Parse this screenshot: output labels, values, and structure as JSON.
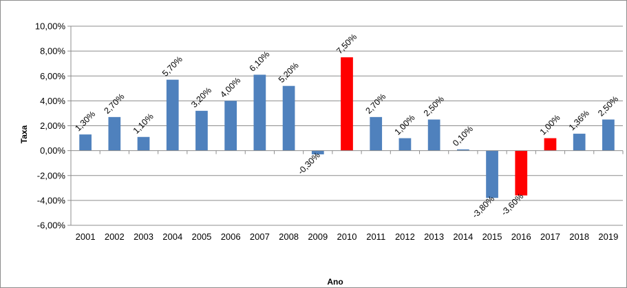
{
  "chart_data": {
    "type": "bar",
    "xlabel": "Ano",
    "ylabel": "Taxa",
    "ylim": [
      -6,
      10
    ],
    "ytick_values": [
      10,
      8,
      6,
      4,
      2,
      0,
      -2,
      -4,
      -6
    ],
    "ytick_labels": [
      "10,00%",
      "8,00%",
      "6,00%",
      "4,00%",
      "2,00%",
      "0,00%",
      "-2,00%",
      "-4,00%",
      "-6,00%"
    ],
    "grid": true,
    "legend": "none",
    "categories": [
      "2001",
      "2002",
      "2003",
      "2004",
      "2005",
      "2006",
      "2007",
      "2008",
      "2009",
      "2010",
      "2011",
      "2012",
      "2013",
      "2014",
      "2015",
      "2016",
      "2017",
      "2018",
      "2019"
    ],
    "values": [
      1.3,
      2.7,
      1.1,
      5.7,
      3.2,
      4.0,
      6.1,
      5.2,
      -0.3,
      7.5,
      2.7,
      1.0,
      2.5,
      0.1,
      -3.8,
      -3.6,
      1.0,
      1.36,
      2.5
    ],
    "data_labels": [
      "1,30%",
      "2,70%",
      "1,10%",
      "5,70%",
      "3,20%",
      "4,00%",
      "6,10%",
      "5,20%",
      "-0,30%",
      "7,50%",
      "2,70%",
      "1,00%",
      "2,50%",
      "0,10%",
      "-3,80%",
      "-3,60%",
      "1,00%",
      "1,36%",
      "2,50%"
    ],
    "colors": [
      "#4f81bd",
      "#4f81bd",
      "#4f81bd",
      "#4f81bd",
      "#4f81bd",
      "#4f81bd",
      "#4f81bd",
      "#4f81bd",
      "#4f81bd",
      "#ff0000",
      "#4f81bd",
      "#4f81bd",
      "#4f81bd",
      "#4f81bd",
      "#4f81bd",
      "#ff0000",
      "#ff0000",
      "#4f81bd",
      "#4f81bd"
    ]
  }
}
